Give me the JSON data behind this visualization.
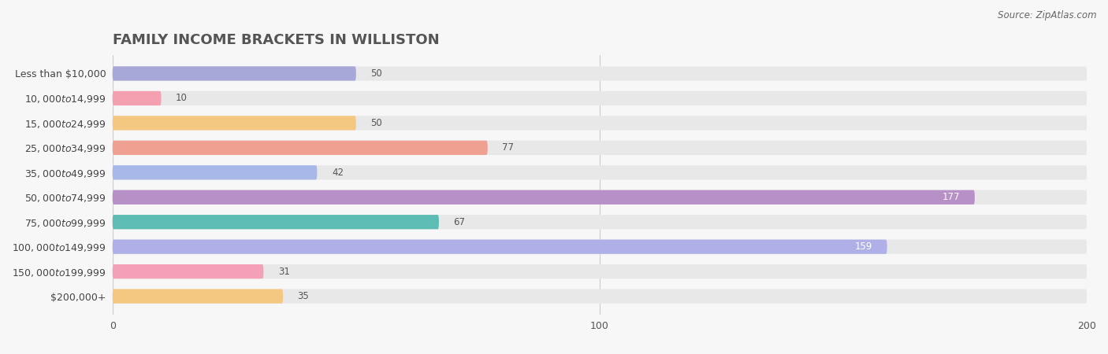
{
  "title": "FAMILY INCOME BRACKETS IN WILLISTON",
  "source": "Source: ZipAtlas.com",
  "categories": [
    "Less than $10,000",
    "$10,000 to $14,999",
    "$15,000 to $24,999",
    "$25,000 to $34,999",
    "$35,000 to $49,999",
    "$50,000 to $74,999",
    "$75,000 to $99,999",
    "$100,000 to $149,999",
    "$150,000 to $199,999",
    "$200,000+"
  ],
  "values": [
    50,
    10,
    50,
    77,
    42,
    177,
    67,
    159,
    31,
    35
  ],
  "bar_colors": [
    "#a8a8d8",
    "#f4a0b0",
    "#f5c882",
    "#f0a090",
    "#a8b8e8",
    "#b890c8",
    "#5dbcb4",
    "#b0b0e8",
    "#f4a0b8",
    "#f5c882"
  ],
  "background_color": "#f7f7f7",
  "bar_bg_color": "#e8e8e8",
  "xlim": [
    0,
    200
  ],
  "title_fontsize": 13,
  "label_fontsize": 9,
  "value_fontsize": 8.5,
  "bar_height": 0.58,
  "label_value_color_inside": "#ffffff",
  "label_value_color_outside": "#555555",
  "inside_threshold": 150
}
